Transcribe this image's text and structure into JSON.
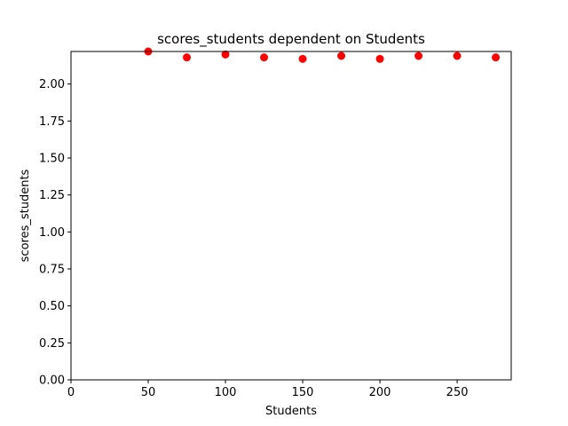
{
  "chart_data": {
    "type": "scatter",
    "title": "scores_students dependent on Students",
    "xlabel": "Students",
    "ylabel": "scores_students",
    "xlim": [
      0,
      285
    ],
    "ylim": [
      0,
      2.22
    ],
    "xticks": [
      0,
      50,
      100,
      150,
      200,
      250
    ],
    "xtick_labels": [
      "0",
      "50",
      "100",
      "150",
      "200",
      "250"
    ],
    "yticks": [
      0,
      0.25,
      0.5,
      0.75,
      1.0,
      1.25,
      1.5,
      1.75,
      2.0
    ],
    "ytick_labels": [
      "0.00",
      "0.25",
      "0.50",
      "0.75",
      "1.00",
      "1.25",
      "1.50",
      "1.75",
      "2.00"
    ],
    "grid": false,
    "marker_color": "#ff0000",
    "points": [
      {
        "x": 50,
        "y": 2.22
      },
      {
        "x": 75,
        "y": 2.18
      },
      {
        "x": 100,
        "y": 2.2
      },
      {
        "x": 125,
        "y": 2.18
      },
      {
        "x": 150,
        "y": 2.17
      },
      {
        "x": 175,
        "y": 2.19
      },
      {
        "x": 200,
        "y": 2.17
      },
      {
        "x": 225,
        "y": 2.19
      },
      {
        "x": 250,
        "y": 2.19
      },
      {
        "x": 275,
        "y": 2.18
      }
    ]
  }
}
